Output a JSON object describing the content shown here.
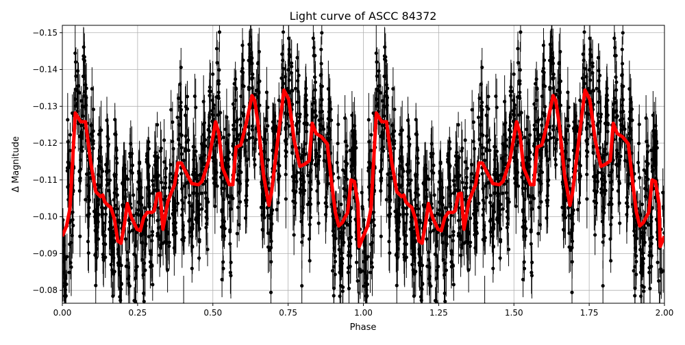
{
  "chart_data": {
    "type": "scatter",
    "title": "Light curve of ASCC 84372",
    "xlabel": "Phase",
    "ylabel": "Δ Magnitude",
    "xlim": [
      0,
      2
    ],
    "ylim": [
      -0.152,
      -0.0765
    ],
    "y_inverted": true,
    "grid": true,
    "x_ticks": [
      0,
      0.25,
      0.5,
      0.75,
      1.0,
      1.25,
      1.5,
      1.75,
      2.0
    ],
    "x_tick_labels": [
      "0.00",
      "0.25",
      "0.50",
      "0.75",
      "1.00",
      "1.25",
      "1.50",
      "1.75",
      "2.00"
    ],
    "y_ticks": [
      -0.15,
      -0.14,
      -0.13,
      -0.12,
      -0.11,
      -0.1,
      -0.09,
      -0.08
    ],
    "y_tick_labels": [
      "−0.15",
      "−0.14",
      "−0.13",
      "−0.12",
      "−0.11",
      "−0.10",
      "−0.09",
      "−0.08"
    ],
    "series": [
      {
        "name": "observations",
        "kind": "errorbar-scatter",
        "color": "#000000",
        "approx_scatter_sigma": 0.013,
        "approx_error": 0.005,
        "note_repeats_each_phase": true
      },
      {
        "name": "binned model",
        "kind": "line",
        "color": "#ff0000",
        "repeats_with_period": 1,
        "phase": [
          0,
          0.014,
          0.025,
          0.043,
          0.061,
          0.077,
          0.095,
          0.111,
          0.127,
          0.134,
          0.141,
          0.152,
          0.161,
          0.173,
          0.184,
          0.195,
          0.207,
          0.216,
          0.23,
          0.248,
          0.259,
          0.27,
          0.282,
          0.298,
          0.305,
          0.316,
          0.325,
          0.334,
          0.35,
          0.361,
          0.373,
          0.384,
          0.395,
          0.411,
          0.43,
          0.452,
          0.464,
          0.486,
          0.509,
          0.52,
          0.532,
          0.555,
          0.566,
          0.577,
          0.593,
          0.611,
          0.63,
          0.639,
          0.65,
          0.668,
          0.686,
          0.695,
          0.714,
          0.736,
          0.752,
          0.77,
          0.789,
          0.805,
          0.82,
          0.83,
          0.843,
          0.861,
          0.88,
          0.895,
          0.907,
          0.918,
          0.93,
          0.948,
          0.959,
          0.97,
          0.982,
          0.986
        ],
        "magnitude": [
          -0.0947,
          -0.0975,
          -0.1021,
          -0.1282,
          -0.1258,
          -0.1258,
          -0.1143,
          -0.1068,
          -0.1055,
          -0.1059,
          -0.104,
          -0.1031,
          -0.1025,
          -0.0994,
          -0.0934,
          -0.0928,
          -0.0984,
          -0.1036,
          -0.0997,
          -0.0966,
          -0.0962,
          -0.0997,
          -0.1012,
          -0.1012,
          -0.1016,
          -0.1062,
          -0.1064,
          -0.0966,
          -0.104,
          -0.1064,
          -0.1087,
          -0.1146,
          -0.1146,
          -0.112,
          -0.109,
          -0.1087,
          -0.1096,
          -0.1152,
          -0.1258,
          -0.1226,
          -0.1133,
          -0.1087,
          -0.1087,
          -0.1189,
          -0.1195,
          -0.1254,
          -0.1329,
          -0.1316,
          -0.1254,
          -0.1115,
          -0.1031,
          -0.1068,
          -0.1198,
          -0.1344,
          -0.1319,
          -0.1208,
          -0.1137,
          -0.1143,
          -0.1152,
          -0.1254,
          -0.1226,
          -0.1217,
          -0.1198,
          -0.1087,
          -0.1012,
          -0.0975,
          -0.0984,
          -0.1012,
          -0.11,
          -0.1096,
          -0.1035,
          -0.0919
        ]
      }
    ]
  }
}
